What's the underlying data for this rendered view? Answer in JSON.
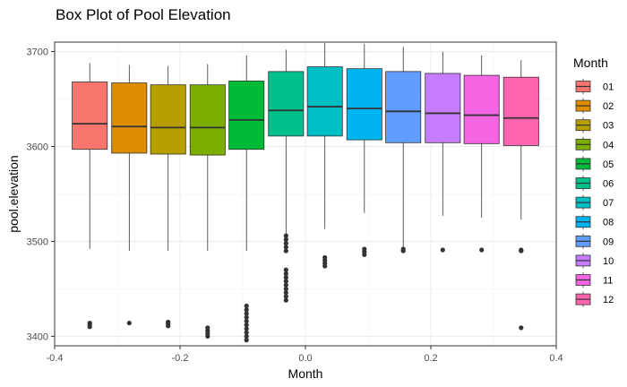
{
  "chart_data": {
    "type": "box",
    "title": "Box Plot of Pool Elevation",
    "xlabel": "Month",
    "ylabel": "pool.elevation",
    "xlim": [
      -0.4,
      0.4
    ],
    "ylim": [
      3390,
      3710
    ],
    "xticks": [
      -0.4,
      -0.2,
      0.0,
      0.2,
      0.4
    ],
    "xtick_labels": [
      "-0.4",
      "-0.2",
      "0.0",
      "0.2",
      "0.4"
    ],
    "yticks": [
      3400,
      3500,
      3600,
      3700
    ],
    "ytick_labels": [
      "3400",
      "3500",
      "3600",
      "3700"
    ],
    "grid": true,
    "legend": {
      "title": "Month",
      "position": "right"
    },
    "series": [
      {
        "name": "01",
        "color": "#F8766D",
        "x": -0.344,
        "min": 3492,
        "q1": 3597,
        "median": 3624,
        "q3": 3668,
        "max": 3688,
        "outliers": [
          3410,
          3412,
          3414
        ]
      },
      {
        "name": "02",
        "color": "#DE8C00",
        "x": -0.281,
        "min": 3490,
        "q1": 3593,
        "median": 3621,
        "q3": 3667,
        "max": 3686,
        "outliers": [
          3414
        ]
      },
      {
        "name": "03",
        "color": "#B79F00",
        "x": -0.219,
        "min": 3490,
        "q1": 3592,
        "median": 3620,
        "q3": 3665,
        "max": 3685,
        "outliers": [
          3411,
          3413,
          3415
        ]
      },
      {
        "name": "04",
        "color": "#7CAE00",
        "x": -0.156,
        "min": 3490,
        "q1": 3591,
        "median": 3620,
        "q3": 3665,
        "max": 3687,
        "outliers": [
          3400,
          3403,
          3406,
          3409
        ]
      },
      {
        "name": "05",
        "color": "#00BA38",
        "x": -0.094,
        "min": 3490,
        "q1": 3597,
        "median": 3628,
        "q3": 3669,
        "max": 3696,
        "outliers": [
          3396,
          3400,
          3404,
          3408,
          3412,
          3416,
          3420,
          3424,
          3428,
          3432
        ]
      },
      {
        "name": "06",
        "color": "#00C08B",
        "x": -0.031,
        "min": 3500,
        "q1": 3611,
        "median": 3638,
        "q3": 3679,
        "max": 3702,
        "outliers": [
          3438,
          3442,
          3446,
          3450,
          3454,
          3458,
          3462,
          3466,
          3470,
          3490,
          3494,
          3498,
          3502,
          3506
        ]
      },
      {
        "name": "07",
        "color": "#00BFC4",
        "x": 0.031,
        "min": 3513,
        "q1": 3611,
        "median": 3642,
        "q3": 3684,
        "max": 3709,
        "outliers": [
          3474,
          3477,
          3480,
          3483
        ]
      },
      {
        "name": "08",
        "color": "#00B4F0",
        "x": 0.094,
        "min": 3530,
        "q1": 3607,
        "median": 3640,
        "q3": 3682,
        "max": 3708,
        "outliers": [
          3486,
          3489,
          3492
        ]
      },
      {
        "name": "09",
        "color": "#619CFF",
        "x": 0.156,
        "min": 3490,
        "q1": 3604,
        "median": 3637,
        "q3": 3679,
        "max": 3705,
        "outliers": [
          3490,
          3492
        ]
      },
      {
        "name": "10",
        "color": "#C77CFF",
        "x": 0.219,
        "min": 3527,
        "q1": 3604,
        "median": 3635,
        "q3": 3677,
        "max": 3700,
        "outliers": [
          3491
        ]
      },
      {
        "name": "11",
        "color": "#F564E3",
        "x": 0.281,
        "min": 3525,
        "q1": 3603,
        "median": 3633,
        "q3": 3675,
        "max": 3696,
        "outliers": [
          3491
        ]
      },
      {
        "name": "12",
        "color": "#FF64B0",
        "x": 0.344,
        "min": 3523,
        "q1": 3601,
        "median": 3630,
        "q3": 3673,
        "max": 3691,
        "outliers": [
          3409,
          3490,
          3491
        ]
      }
    ]
  }
}
